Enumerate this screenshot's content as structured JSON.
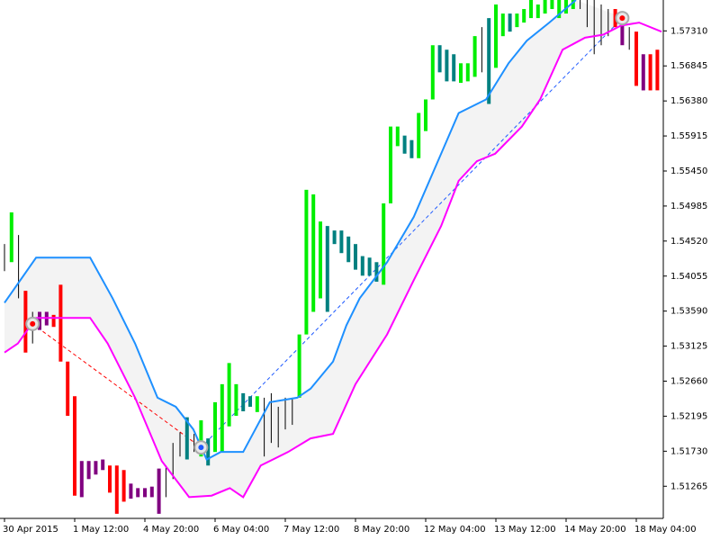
{
  "chart_data": {
    "type": "ohlc",
    "categories": [
      "30 Apr 2015",
      null,
      null,
      null,
      null,
      null,
      null,
      null,
      null,
      null,
      "1 May 12:00",
      null,
      null,
      null,
      null,
      null,
      null,
      null,
      null,
      null,
      "4 May 20:00",
      null,
      null,
      null,
      null,
      null,
      null,
      null,
      null,
      null,
      "6 May 04:00",
      null,
      null,
      null,
      null,
      null,
      null,
      null,
      null,
      null,
      "7 May 12:00",
      null,
      null,
      null,
      null,
      null,
      null,
      null,
      null,
      null,
      "8 May 20:00",
      null,
      null,
      null,
      null,
      null,
      null,
      null,
      null,
      null,
      "12 May 04:00",
      null,
      null,
      null,
      null,
      null,
      null,
      null,
      null,
      null,
      "13 May 12:00",
      null,
      null,
      null,
      null,
      null,
      null,
      null,
      null,
      null,
      "14 May 20:00",
      null,
      null,
      null,
      null,
      null,
      null,
      null,
      null,
      null,
      "18 May 04:00",
      null,
      null,
      null
    ],
    "high": [
      1.5448,
      1.549,
      1.546,
      1.5386,
      1.5358,
      1.5358,
      1.5358,
      1.5354,
      1.5394,
      1.5292,
      1.5246,
      1.516,
      1.516,
      1.516,
      1.5162,
      1.5154,
      1.5154,
      1.5148,
      1.513,
      1.5124,
      1.5124,
      1.5126,
      1.515,
      1.5154,
      1.5184,
      1.5198,
      1.5218,
      1.5196,
      1.5214,
      1.519,
      1.5238,
      1.5262,
      1.529,
      1.5262,
      1.525,
      1.5246,
      1.5246,
      1.5244,
      1.525,
      1.5232,
      1.5244,
      1.5244,
      1.5328,
      1.552,
      1.5514,
      1.5478,
      1.5472,
      1.5466,
      1.5466,
      1.5458,
      1.5448,
      1.5432,
      1.543,
      1.5424,
      1.5502,
      1.5604,
      1.5604,
      1.5592,
      1.5586,
      1.5622,
      1.564,
      1.5712,
      1.5712,
      1.5706,
      1.57,
      1.5688,
      1.5688,
      1.5724,
      1.5736,
      1.5748,
      1.5766,
      1.5754,
      1.5754,
      1.5754,
      1.576,
      1.5772,
      1.5766,
      1.5772,
      1.5772,
      1.5772,
      1.5772,
      1.5772,
      1.5772,
      1.5772,
      1.5772,
      1.5766,
      1.576,
      1.576,
      1.5748,
      1.5736,
      1.573,
      1.57,
      1.57,
      1.5706
    ],
    "low": [
      1.5412,
      1.5424,
      1.5376,
      1.5304,
      1.5316,
      1.5334,
      1.534,
      1.5338,
      1.5292,
      1.522,
      1.5114,
      1.5112,
      1.5136,
      1.5142,
      1.5148,
      1.5118,
      1.509,
      1.5106,
      1.511,
      1.5112,
      1.5112,
      1.5112,
      1.509,
      1.5112,
      1.5136,
      1.5166,
      1.5162,
      1.5172,
      1.5166,
      1.5154,
      1.5172,
      1.5172,
      1.5206,
      1.522,
      1.5226,
      1.5232,
      1.5225,
      1.5166,
      1.5184,
      1.5178,
      1.5202,
      1.5208,
      1.5244,
      1.5328,
      1.5358,
      1.5376,
      1.5358,
      1.5448,
      1.5436,
      1.5424,
      1.5414,
      1.5406,
      1.5406,
      1.5398,
      1.5394,
      1.5502,
      1.5578,
      1.5568,
      1.5562,
      1.5562,
      1.5598,
      1.564,
      1.5676,
      1.5664,
      1.5664,
      1.5662,
      1.5664,
      1.567,
      1.5676,
      1.5634,
      1.5682,
      1.5724,
      1.573,
      1.5736,
      1.5742,
      1.5748,
      1.5748,
      1.5754,
      1.576,
      1.5748,
      1.5754,
      1.576,
      1.576,
      1.5736,
      1.57,
      1.5712,
      1.5724,
      1.5736,
      1.5712,
      1.5706,
      1.5658,
      1.5652,
      1.5652,
      1.5652
    ],
    "colors": [
      "#000000",
      "#00ee00",
      "#000000",
      "#ff0000",
      "#000000",
      "#800080",
      "#800080",
      "#ff0000",
      "#ff0000",
      "#ff0000",
      "#ff0000",
      "#800080",
      "#800080",
      "#800080",
      "#800080",
      "#ff0000",
      "#ff0000",
      "#ff0000",
      "#800080",
      "#800080",
      "#800080",
      "#800080",
      "#800080",
      "#000000",
      "#000000",
      "#000000",
      "#008080",
      "#000000",
      "#00ee00",
      "#008080",
      "#00ee00",
      "#00ee00",
      "#00ee00",
      "#00ee00",
      "#008080",
      "#008080",
      "#00ee00",
      "#000000",
      "#000000",
      "#000000",
      "#000000",
      "#000000",
      "#00ee00",
      "#00ee00",
      "#00ee00",
      "#00ee00",
      "#008080",
      "#008080",
      "#008080",
      "#008080",
      "#008080",
      "#008080",
      "#008080",
      "#008080",
      "#00ee00",
      "#00ee00",
      "#00ee00",
      "#008080",
      "#008080",
      "#00ee00",
      "#00ee00",
      "#00ee00",
      "#008080",
      "#008080",
      "#008080",
      "#00ee00",
      "#00ee00",
      "#00ee00",
      "#000000",
      "#008080",
      "#00ee00",
      "#00ee00",
      "#008080",
      "#00ee00",
      "#00ee00",
      "#00ee00",
      "#00ee00",
      "#00ee00",
      "#00ee00",
      "#00ee00",
      "#00ee00",
      "#00ee00",
      "#000000",
      "#000000",
      "#000000",
      "#000000",
      "#000000",
      "#ff0000",
      "#800080",
      "#000000",
      "#ff0000",
      "#800080",
      "#ff0000",
      "#ff0000"
    ],
    "channels": [
      {
        "color": "#1e90ff",
        "x": [
          0,
          4.5,
          12.2,
          15.4,
          18.6,
          21.8,
          24.4,
          26.9,
          28.8,
          30.8,
          34.0,
          37.8,
          41.7,
          43.6,
          46.8,
          48.7,
          50.6,
          54.5,
          58.3,
          62.2,
          64.7,
          68.6,
          71.8,
          74.4,
          77.6,
          81.4
        ],
        "values": [
          1.537,
          1.543,
          1.543,
          1.5376,
          1.5316,
          1.5244,
          1.5232,
          1.5202,
          1.5162,
          1.5172,
          1.5172,
          1.5238,
          1.5244,
          1.5256,
          1.5292,
          1.534,
          1.5376,
          1.5424,
          1.5484,
          1.5568,
          1.5622,
          1.564,
          1.5688,
          1.5718,
          1.5742,
          1.5772
        ]
      },
      {
        "color": "#ff00ff",
        "x": [
          0,
          1.9,
          4.5,
          12.2,
          14.7,
          18.6,
          22.4,
          26.3,
          29.5,
          32.1,
          34.0,
          36.5,
          40.4,
          43.6,
          46.8,
          50.0,
          54.5,
          58.3,
          62.2,
          64.7,
          67.3,
          69.9,
          73.7,
          76.3,
          79.5,
          82.7,
          85.3,
          87.8,
          90.4,
          93.6
        ],
        "values": [
          1.5304,
          1.5316,
          1.535,
          1.535,
          1.5316,
          1.5244,
          1.516,
          1.5112,
          1.5114,
          1.5124,
          1.5112,
          1.5154,
          1.5172,
          1.519,
          1.5196,
          1.5262,
          1.5328,
          1.54,
          1.5472,
          1.5532,
          1.5558,
          1.5568,
          1.5604,
          1.564,
          1.5706,
          1.5722,
          1.5726,
          1.5738,
          1.5742,
          1.573
        ]
      }
    ],
    "signals": [
      {
        "x": 4,
        "value": 1.5342,
        "color": "#ff0000"
      },
      {
        "x": 28,
        "value": 1.5178,
        "color": "#1e5aff"
      },
      {
        "x": 88,
        "value": 1.5748,
        "color": "#ff0000"
      }
    ],
    "ylim": [
      1.5085,
      1.5772
    ],
    "yticks": [
      {
        "value": 1.5731,
        "label": "1.57310"
      },
      {
        "value": 1.56845,
        "label": "1.56845"
      },
      {
        "value": 1.5638,
        "label": "1.56380"
      },
      {
        "value": 1.55915,
        "label": "1.55915"
      },
      {
        "value": 1.5545,
        "label": "1.55450"
      },
      {
        "value": 1.54985,
        "label": "1.54985"
      },
      {
        "value": 1.5452,
        "label": "1.54520"
      },
      {
        "value": 1.54055,
        "label": "1.54055"
      },
      {
        "value": 1.5359,
        "label": "1.53590"
      },
      {
        "value": 1.53125,
        "label": "1.53125"
      },
      {
        "value": 1.5266,
        "label": "1.52660"
      },
      {
        "value": 1.52195,
        "label": "1.52195"
      },
      {
        "value": 1.5173,
        "label": "1.51730"
      },
      {
        "value": 1.51265,
        "label": "1.51265"
      }
    ]
  }
}
